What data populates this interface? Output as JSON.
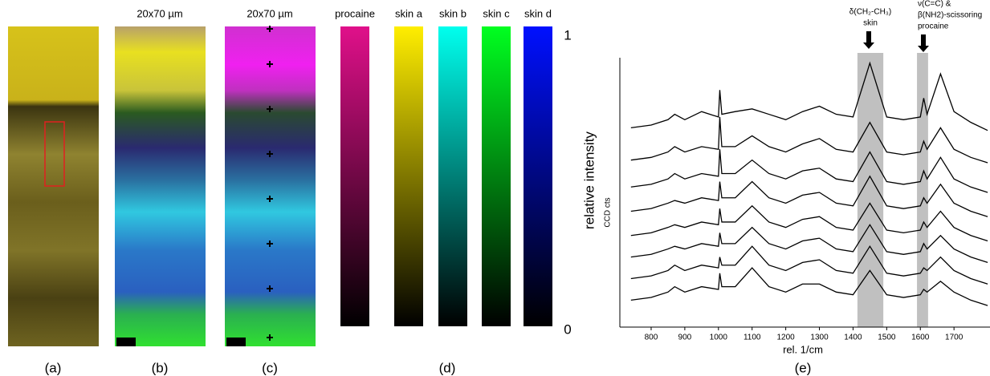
{
  "panels": {
    "a": {
      "label": "(a)"
    },
    "b": {
      "label": "(b)",
      "scale": "20x70 µm"
    },
    "c": {
      "label": "(c)",
      "scale": "20x70 µm"
    },
    "d": {
      "label": "(d)",
      "colorbars": [
        "procaine",
        "skin a",
        "skin b",
        "skin c",
        "skin d"
      ],
      "colors": [
        "#e0108a",
        "#ffee00",
        "#00ffee",
        "#00ff20",
        "#0010ff"
      ],
      "max": "1",
      "min": "0",
      "axis_label": "relative intensity"
    }
  },
  "chart_data": {
    "type": "line",
    "label": "(e)",
    "xlabel": "rel. 1/cm",
    "ylabel": "CCD cts",
    "xlim": [
      707,
      1807
    ],
    "ylim": [
      0,
      10
    ],
    "xticks": [
      800,
      900,
      1000,
      1100,
      1200,
      1300,
      1400,
      1500,
      1600,
      1700
    ],
    "bands": [
      [
        1413,
        1490
      ],
      [
        1590,
        1623
      ]
    ],
    "band_color": "#c0c0c0",
    "annotations": [
      [
        "δ(CH₂-CH₃)",
        "skin"
      ],
      [
        "ν(C=C) &",
        "β(NH2)-scissoring",
        "procaine"
      ]
    ],
    "x": [
      740,
      800,
      850,
      870,
      900,
      950,
      1000,
      1004,
      1010,
      1050,
      1100,
      1150,
      1200,
      1250,
      1300,
      1350,
      1400,
      1450,
      1500,
      1550,
      1600,
      1610,
      1620,
      1660,
      1700,
      1750,
      1800
    ],
    "series": [
      {
        "color": "#000000",
        "values": [
          1.0,
          1.1,
          1.3,
          1.5,
          1.3,
          1.5,
          1.4,
          2.0,
          1.5,
          1.5,
          2.2,
          1.5,
          1.3,
          1.6,
          1.6,
          1.3,
          1.2,
          2.1,
          1.2,
          1.1,
          1.2,
          1.4,
          1.3,
          1.7,
          1.3,
          1.0,
          0.8
        ]
      },
      {
        "color": "#000000",
        "values": [
          1.8,
          1.9,
          2.1,
          2.3,
          2.1,
          2.3,
          2.2,
          2.6,
          2.3,
          2.3,
          3.0,
          2.3,
          2.1,
          2.4,
          2.5,
          2.1,
          2.0,
          3.0,
          2.0,
          1.9,
          2.0,
          2.2,
          2.1,
          2.6,
          2.1,
          1.8,
          1.6
        ]
      },
      {
        "color": "#000000",
        "values": [
          2.6,
          2.7,
          2.9,
          3.0,
          2.9,
          3.1,
          3.0,
          3.5,
          3.1,
          3.1,
          3.7,
          3.1,
          2.9,
          3.2,
          3.3,
          2.9,
          2.8,
          3.8,
          2.8,
          2.7,
          2.8,
          3.1,
          2.9,
          3.4,
          2.9,
          2.6,
          2.4
        ]
      },
      {
        "color": "#000000",
        "values": [
          3.4,
          3.5,
          3.7,
          3.8,
          3.7,
          3.9,
          3.8,
          4.4,
          3.9,
          3.9,
          4.5,
          3.9,
          3.7,
          4.0,
          4.1,
          3.7,
          3.6,
          4.6,
          3.6,
          3.5,
          3.6,
          3.9,
          3.7,
          4.3,
          3.7,
          3.4,
          3.2
        ]
      },
      {
        "color": "#000000",
        "values": [
          4.3,
          4.4,
          4.6,
          4.7,
          4.6,
          4.8,
          4.7,
          5.4,
          4.8,
          4.8,
          5.4,
          4.8,
          4.6,
          4.9,
          5.0,
          4.6,
          4.5,
          5.6,
          4.5,
          4.4,
          4.5,
          4.8,
          4.6,
          5.3,
          4.6,
          4.3,
          4.1
        ]
      },
      {
        "color": "#000000",
        "values": [
          5.2,
          5.3,
          5.5,
          5.7,
          5.5,
          5.7,
          5.6,
          6.6,
          5.7,
          5.7,
          6.2,
          5.7,
          5.5,
          5.8,
          5.9,
          5.5,
          5.4,
          6.5,
          5.4,
          5.3,
          5.4,
          5.8,
          5.5,
          6.3,
          5.5,
          5.2,
          5.0
        ]
      },
      {
        "color": "#000000",
        "values": [
          6.2,
          6.3,
          6.5,
          6.7,
          6.5,
          6.7,
          6.6,
          7.8,
          6.7,
          6.7,
          7.1,
          6.7,
          6.5,
          6.8,
          7.0,
          6.6,
          6.5,
          7.6,
          6.5,
          6.4,
          6.5,
          6.9,
          6.6,
          7.4,
          6.6,
          6.3,
          6.1
        ]
      },
      {
        "color": "#000000",
        "values": [
          7.4,
          7.5,
          7.7,
          7.9,
          7.7,
          8.0,
          7.8,
          8.8,
          7.9,
          8.0,
          8.1,
          7.9,
          7.7,
          8.0,
          8.2,
          7.9,
          7.8,
          9.8,
          7.8,
          7.7,
          7.8,
          8.5,
          7.9,
          9.4,
          8.0,
          7.6,
          7.3
        ]
      }
    ]
  }
}
